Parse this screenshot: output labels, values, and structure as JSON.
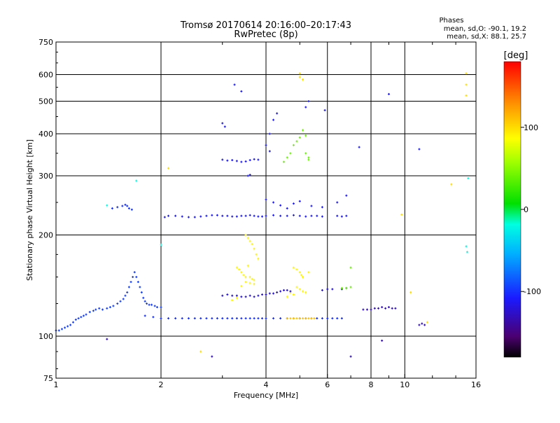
{
  "chart_data": {
    "type": "scatter",
    "title": "Tromsø 20170614 20:16:00–20:17:43",
    "subtitle": "RwPretec (8p)",
    "xlabel": "Frequency [MHz]",
    "ylabel": "Stationary phase Virtual Height [km]",
    "x_scale": "log",
    "y_scale": "log",
    "xlim": [
      1,
      16
    ],
    "ylim": [
      75,
      750
    ],
    "xticks": [
      1,
      2,
      4,
      6,
      8,
      10,
      16
    ],
    "yticks": [
      75,
      100,
      200,
      300,
      400,
      500,
      600,
      750
    ],
    "x_minor": [
      3,
      5,
      7,
      9,
      12,
      14
    ],
    "grid": true,
    "stats": {
      "title": "Phases",
      "line_o": "mean, sd,O: -90.1, 19.2",
      "line_x": "mean, sd,X:  88.1, 25.7"
    },
    "colorbar": {
      "label": "[deg]",
      "min": -180,
      "max": 180,
      "ticks": [
        100,
        0,
        -100
      ]
    },
    "series": [
      {
        "color_phase": -95,
        "points": [
          [
            1.0,
            104
          ],
          [
            1.02,
            104
          ],
          [
            1.04,
            105
          ],
          [
            1.06,
            106
          ],
          [
            1.08,
            107
          ],
          [
            1.1,
            108
          ],
          [
            1.12,
            110
          ],
          [
            1.14,
            112
          ],
          [
            1.16,
            113
          ],
          [
            1.18,
            114
          ],
          [
            1.2,
            115
          ],
          [
            1.22,
            116
          ],
          [
            1.25,
            118
          ],
          [
            1.28,
            119
          ],
          [
            1.3,
            120
          ],
          [
            1.33,
            121
          ],
          [
            1.36,
            120
          ],
          [
            1.4,
            121
          ],
          [
            1.43,
            122
          ],
          [
            1.46,
            123
          ],
          [
            1.5,
            125
          ],
          [
            1.53,
            127
          ],
          [
            1.56,
            129
          ],
          [
            1.58,
            132
          ],
          [
            1.6,
            135
          ],
          [
            1.62,
            140
          ],
          [
            1.64,
            145
          ],
          [
            1.66,
            150
          ],
          [
            1.68,
            155
          ],
          [
            1.7,
            150
          ],
          [
            1.72,
            145
          ],
          [
            1.74,
            140
          ],
          [
            1.76,
            135
          ],
          [
            1.78,
            130
          ],
          [
            1.8,
            127
          ],
          [
            1.82,
            125
          ],
          [
            1.85,
            124
          ],
          [
            1.88,
            124
          ],
          [
            1.92,
            123
          ],
          [
            1.95,
            122
          ],
          [
            2.0,
            122
          ]
        ]
      },
      {
        "color_phase": -100,
        "points": [
          [
            1.8,
            115
          ],
          [
            1.9,
            114
          ],
          [
            2.0,
            113
          ],
          [
            2.1,
            113
          ],
          [
            2.2,
            113
          ],
          [
            2.3,
            113
          ],
          [
            2.4,
            113
          ],
          [
            2.5,
            113
          ],
          [
            2.6,
            113
          ],
          [
            2.7,
            113
          ],
          [
            2.8,
            113
          ],
          [
            2.9,
            113
          ],
          [
            3.0,
            113
          ],
          [
            3.1,
            113
          ],
          [
            3.2,
            113
          ],
          [
            3.3,
            113
          ],
          [
            3.4,
            113
          ],
          [
            3.5,
            113
          ],
          [
            3.6,
            113
          ],
          [
            3.7,
            113
          ],
          [
            3.8,
            113
          ],
          [
            3.9,
            113
          ],
          [
            4.0,
            113
          ],
          [
            4.2,
            113
          ],
          [
            4.4,
            113
          ],
          [
            4.6,
            113
          ],
          [
            4.8,
            113
          ],
          [
            5.0,
            113
          ],
          [
            5.2,
            113
          ],
          [
            5.4,
            113
          ],
          [
            5.6,
            113
          ],
          [
            5.8,
            113
          ],
          [
            6.0,
            113
          ],
          [
            6.2,
            113
          ],
          [
            6.4,
            113
          ],
          [
            6.6,
            113
          ]
        ]
      },
      {
        "color_phase": 110,
        "points": [
          [
            4.6,
            113
          ],
          [
            4.7,
            113
          ],
          [
            4.8,
            113
          ],
          [
            4.9,
            113
          ],
          [
            5.0,
            113
          ],
          [
            5.1,
            113
          ],
          [
            5.2,
            113
          ],
          [
            5.3,
            113
          ],
          [
            5.4,
            113
          ],
          [
            5.5,
            113
          ]
        ]
      },
      {
        "color_phase": -110,
        "points": [
          [
            2.05,
            226
          ],
          [
            2.1,
            228
          ],
          [
            2.2,
            228
          ],
          [
            2.3,
            227
          ],
          [
            2.4,
            226
          ],
          [
            2.5,
            226
          ],
          [
            2.6,
            227
          ],
          [
            2.7,
            228
          ],
          [
            2.8,
            229
          ],
          [
            2.9,
            229
          ],
          [
            3.0,
            228
          ],
          [
            3.1,
            228
          ],
          [
            3.2,
            227
          ],
          [
            3.3,
            227
          ],
          [
            3.4,
            228
          ],
          [
            3.5,
            228
          ],
          [
            3.6,
            229
          ],
          [
            3.7,
            228
          ],
          [
            3.8,
            227
          ],
          [
            3.9,
            227
          ],
          [
            4.0,
            228
          ],
          [
            4.2,
            229
          ],
          [
            4.4,
            228
          ],
          [
            4.6,
            228
          ],
          [
            4.8,
            229
          ],
          [
            5.0,
            228
          ],
          [
            5.2,
            227
          ],
          [
            5.4,
            228
          ],
          [
            5.6,
            228
          ],
          [
            5.8,
            227
          ],
          [
            6.4,
            228
          ],
          [
            6.6,
            227
          ],
          [
            6.8,
            228
          ]
        ]
      },
      {
        "color_phase": -100,
        "points": [
          [
            1.45,
            240
          ],
          [
            1.5,
            242
          ],
          [
            1.55,
            244
          ],
          [
            1.58,
            246
          ],
          [
            1.6,
            244
          ],
          [
            1.62,
            240
          ],
          [
            1.65,
            238
          ]
        ]
      },
      {
        "color_phase": 90,
        "points": [
          [
            3.3,
            160
          ],
          [
            3.35,
            158
          ],
          [
            3.4,
            155
          ],
          [
            3.45,
            152
          ],
          [
            3.5,
            150
          ],
          [
            3.55,
            162
          ],
          [
            3.6,
            150
          ],
          [
            3.65,
            148
          ],
          [
            3.7,
            147
          ],
          [
            3.5,
            145
          ],
          [
            3.6,
            144
          ],
          [
            3.7,
            143
          ],
          [
            3.4,
            141
          ],
          [
            3.3,
            130
          ],
          [
            3.2,
            128
          ],
          [
            3.5,
            200
          ],
          [
            3.55,
            196
          ],
          [
            3.6,
            192
          ],
          [
            3.65,
            188
          ],
          [
            3.7,
            182
          ],
          [
            3.75,
            175
          ],
          [
            3.8,
            170
          ],
          [
            4.8,
            160
          ],
          [
            4.9,
            158
          ],
          [
            5.0,
            155
          ],
          [
            5.05,
            152
          ],
          [
            5.1,
            150
          ],
          [
            4.9,
            140
          ],
          [
            5.0,
            138
          ],
          [
            5.1,
            136
          ],
          [
            5.2,
            135
          ],
          [
            4.7,
            135
          ],
          [
            4.8,
            133
          ],
          [
            4.6,
            131
          ],
          [
            5.3,
            155
          ]
        ]
      },
      {
        "color_phase": -120,
        "points": [
          [
            3.0,
            132
          ],
          [
            3.1,
            133
          ],
          [
            3.2,
            132
          ],
          [
            3.3,
            132
          ],
          [
            3.4,
            131
          ],
          [
            3.5,
            131
          ],
          [
            3.6,
            132
          ],
          [
            3.7,
            131
          ],
          [
            3.8,
            132
          ],
          [
            3.9,
            133
          ],
          [
            4.0,
            133
          ],
          [
            4.1,
            134
          ],
          [
            4.2,
            134
          ],
          [
            4.3,
            135
          ],
          [
            4.4,
            136
          ],
          [
            4.5,
            137
          ],
          [
            4.6,
            137
          ],
          [
            4.7,
            136
          ],
          [
            5.8,
            137
          ],
          [
            6.0,
            138
          ],
          [
            6.2,
            138
          ],
          [
            6.6,
            138
          ],
          [
            6.8,
            139
          ]
        ]
      },
      {
        "color_phase": 40,
        "points": [
          [
            6.6,
            139
          ],
          [
            6.8,
            139
          ],
          [
            7.0,
            140
          ],
          [
            7.0,
            160
          ],
          [
            5.2,
            350
          ],
          [
            5.3,
            340
          ],
          [
            4.8,
            370
          ],
          [
            4.9,
            380
          ],
          [
            5.0,
            390
          ],
          [
            5.1,
            410
          ],
          [
            5.2,
            395
          ],
          [
            4.7,
            350
          ],
          [
            4.6,
            340
          ],
          [
            4.5,
            330
          ],
          [
            5.3,
            335
          ]
        ]
      },
      {
        "color_phase": -110,
        "points": [
          [
            3.0,
            335
          ],
          [
            3.1,
            333
          ],
          [
            3.2,
            334
          ],
          [
            3.3,
            332
          ],
          [
            3.4,
            330
          ],
          [
            3.5,
            331
          ],
          [
            3.6,
            334
          ],
          [
            3.7,
            336
          ],
          [
            3.8,
            335
          ],
          [
            3.55,
            300
          ],
          [
            3.6,
            302
          ],
          [
            4.0,
            370
          ],
          [
            4.1,
            355
          ],
          [
            4.2,
            440
          ],
          [
            4.3,
            460
          ],
          [
            4.1,
            400
          ],
          [
            4.0,
            255
          ],
          [
            4.2,
            250
          ],
          [
            4.4,
            245
          ],
          [
            4.6,
            240
          ],
          [
            4.8,
            248
          ],
          [
            5.0,
            252
          ],
          [
            5.4,
            244
          ],
          [
            5.8,
            242
          ],
          [
            6.4,
            250
          ],
          [
            6.8,
            262
          ],
          [
            3.0,
            430
          ],
          [
            3.05,
            420
          ],
          [
            3.25,
            560
          ],
          [
            3.4,
            535
          ],
          [
            9.0,
            525
          ],
          [
            11.0,
            360
          ],
          [
            7.4,
            365
          ],
          [
            5.2,
            480
          ],
          [
            5.3,
            500
          ],
          [
            5.9,
            470
          ]
        ]
      },
      {
        "color_phase": -130,
        "points": [
          [
            7.6,
            120
          ],
          [
            7.8,
            120
          ],
          [
            8.0,
            120
          ],
          [
            8.2,
            121
          ],
          [
            8.4,
            121
          ],
          [
            8.6,
            122
          ],
          [
            8.8,
            121
          ],
          [
            9.0,
            122
          ],
          [
            9.2,
            121
          ],
          [
            9.4,
            121
          ],
          [
            11.0,
            108
          ],
          [
            11.2,
            109
          ],
          [
            11.4,
            108
          ],
          [
            7.0,
            87
          ],
          [
            8.6,
            97
          ],
          [
            2.8,
            87
          ],
          [
            1.4,
            98
          ]
        ]
      },
      {
        "color_phase": 100,
        "points": [
          [
            11.6,
            110
          ],
          [
            13.6,
            283
          ],
          [
            15.0,
            605
          ],
          [
            15.0,
            560
          ],
          [
            15.0,
            520
          ],
          [
            5.0,
            605
          ],
          [
            5.0,
            590
          ],
          [
            5.1,
            580
          ],
          [
            2.1,
            316
          ],
          [
            9.8,
            230
          ],
          [
            10.4,
            135
          ],
          [
            2.6,
            90
          ]
        ]
      },
      {
        "color_phase": -20,
        "points": [
          [
            15.2,
            295
          ],
          [
            15.1,
            178
          ],
          [
            1.7,
            290
          ],
          [
            15.0,
            185
          ],
          [
            1.4,
            245
          ],
          [
            2.0,
            187
          ]
        ]
      }
    ]
  }
}
